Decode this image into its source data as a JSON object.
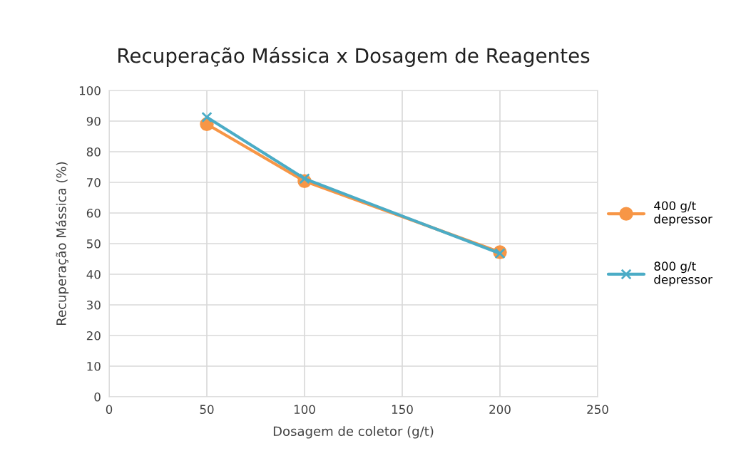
{
  "chart_data": {
    "type": "line",
    "title": "Recuperação Mássica x Dosagem de Reagentes",
    "xlabel": "Dosagem de coletor (g/t)",
    "ylabel": "Recuperação Mássica (%)",
    "x": [
      50,
      100,
      200
    ],
    "series": [
      {
        "name": "400 g/t depressor",
        "color": "#f79646",
        "marker": "circle",
        "values": [
          89,
          70.4,
          47.2
        ]
      },
      {
        "name": "800 g/t depressor",
        "color": "#4bacc6",
        "marker": "cross",
        "values": [
          91.3,
          71.2,
          46.8
        ]
      }
    ],
    "xlim": [
      0,
      250
    ],
    "xticks": [
      0,
      50,
      100,
      150,
      200,
      250
    ],
    "ylim": [
      0,
      100
    ],
    "yticks": [
      0,
      10,
      20,
      30,
      40,
      50,
      60,
      70,
      80,
      90,
      100
    ],
    "grid": true,
    "legend": "right"
  }
}
